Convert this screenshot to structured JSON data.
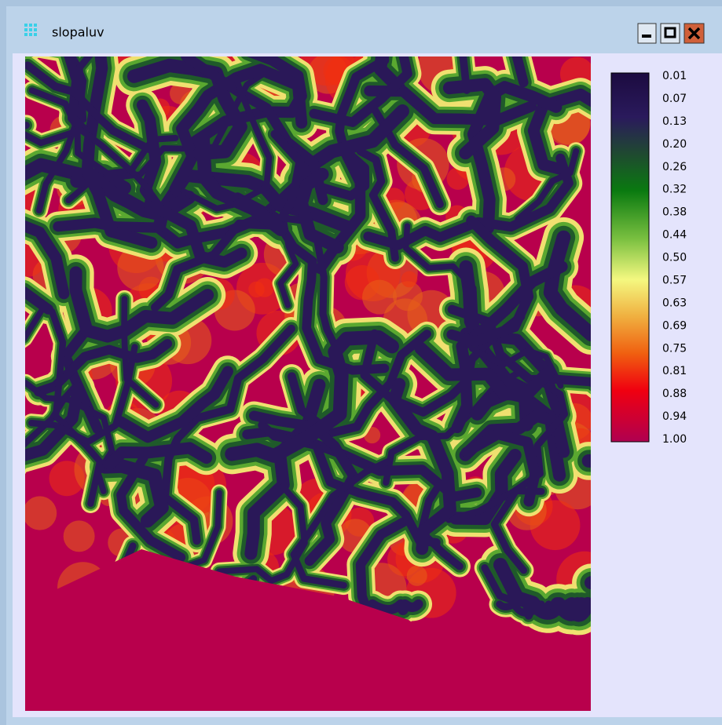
{
  "window": {
    "title": "slopaluv"
  },
  "legend": {
    "labels": [
      "0.01",
      "0.07",
      "0.13",
      "0.20",
      "0.26",
      "0.32",
      "0.38",
      "0.44",
      "0.50",
      "0.57",
      "0.63",
      "0.69",
      "0.75",
      "0.81",
      "0.88",
      "0.94",
      "1.00"
    ]
  }
}
